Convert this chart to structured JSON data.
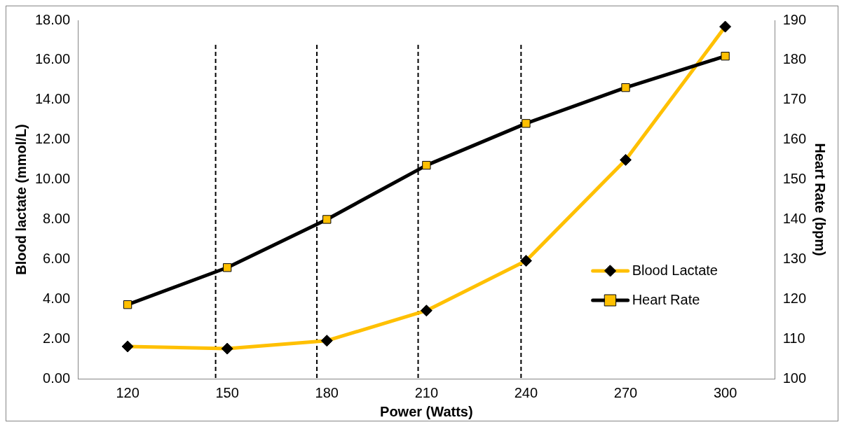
{
  "chart_data": {
    "type": "line",
    "xlabel": "Power (Watts)",
    "ylabel": "Blood lactate (mmol/L)",
    "y2label": "Heart Rate (bpm)",
    "x": [
      120,
      150,
      180,
      210,
      240,
      270,
      300
    ],
    "series": [
      {
        "name": "Blood Lactate",
        "color": "#ffc000",
        "marker": "diamond",
        "values": [
          1.62,
          1.51,
          1.91,
          3.42,
          5.92,
          10.99,
          17.68
        ]
      },
      {
        "name": "Heart Rate",
        "color": "#000000",
        "marker": "square",
        "axis": "y2",
        "values": [
          118.6,
          127.9,
          140.0,
          153.6,
          164.1,
          173.1,
          181.0
        ]
      }
    ],
    "xlim": [
      105,
      315
    ],
    "xticks": [
      120,
      150,
      180,
      210,
      240,
      270,
      300
    ],
    "ylim": [
      0,
      18
    ],
    "yticks": [
      {
        "value": 0,
        "label": "0.00"
      },
      {
        "value": 2,
        "label": "2.00"
      },
      {
        "value": 4,
        "label": "4.00"
      },
      {
        "value": 6,
        "label": "6.00"
      },
      {
        "value": 8,
        "label": "8.00"
      },
      {
        "value": 10,
        "label": "10.00"
      },
      {
        "value": 12,
        "label": "12.00"
      },
      {
        "value": 14,
        "label": "14.00"
      },
      {
        "value": 16,
        "label": "16.00"
      },
      {
        "value": 18,
        "label": "18.00"
      }
    ],
    "y2lim": [
      100,
      190
    ],
    "y2ticks": [
      100,
      110,
      120,
      130,
      140,
      150,
      160,
      170,
      180,
      190
    ],
    "ref_lines": [
      {
        "axis": "x",
        "value": 146.5,
        "line_style": "dashed",
        "color": "#000000"
      },
      {
        "axis": "x",
        "value": 177,
        "line_style": "dashed",
        "color": "#000000"
      },
      {
        "axis": "x",
        "value": 207.5,
        "line_style": "dashed",
        "color": "#000000"
      },
      {
        "axis": "x",
        "value": 238.5,
        "line_style": "dashed",
        "color": "#000000"
      }
    ],
    "grid": false,
    "legend": "bottom right"
  }
}
